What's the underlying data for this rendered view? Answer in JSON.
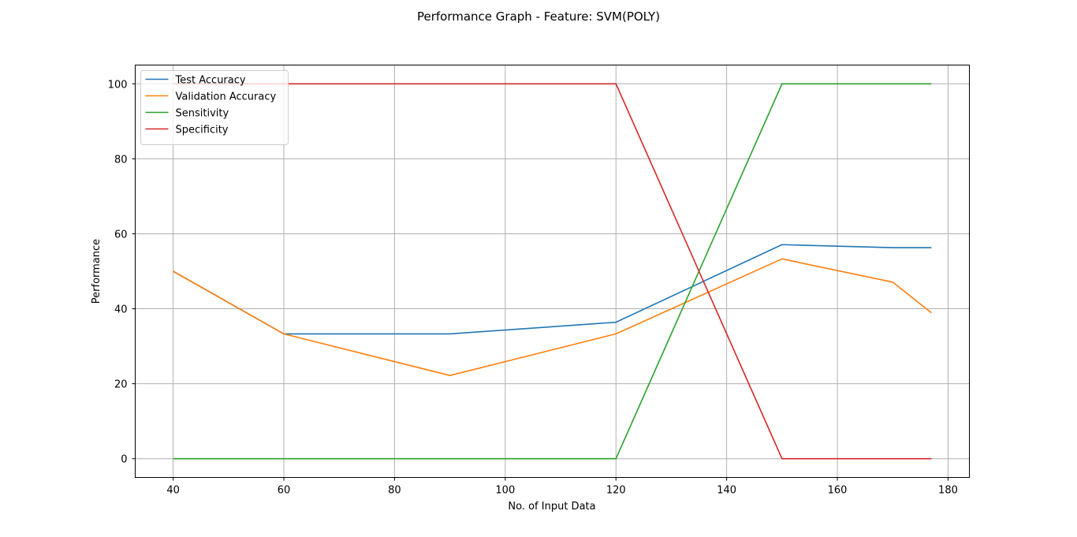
{
  "chart_data": {
    "type": "line",
    "title": "Performance Graph - Feature: SVM(POLY)",
    "xlabel": "No. of Input Data",
    "ylabel": "Performance",
    "xlim": [
      33.15,
      183.85
    ],
    "ylim": [
      -5,
      105
    ],
    "xticks": [
      40,
      60,
      80,
      100,
      120,
      140,
      160,
      180
    ],
    "yticks": [
      0,
      20,
      40,
      60,
      80,
      100
    ],
    "grid": true,
    "legend_position": "upper-left",
    "series": [
      {
        "name": "Test Accuracy",
        "color": "#1f77b4",
        "x": [
          40,
          60,
          90,
          120,
          150,
          170,
          177
        ],
        "y": [
          50,
          33.3,
          33.3,
          36.4,
          57.1,
          56.3,
          56.3
        ]
      },
      {
        "name": "Validation Accuracy",
        "color": "#ff7f0e",
        "x": [
          40,
          60,
          90,
          120,
          150,
          170,
          177
        ],
        "y": [
          50,
          33.3,
          22.2,
          33.3,
          53.3,
          47.1,
          38.9
        ]
      },
      {
        "name": "Sensitivity",
        "color": "#2ca02c",
        "x": [
          40,
          60,
          90,
          120,
          150,
          170,
          177
        ],
        "y": [
          0,
          0,
          0,
          0,
          100,
          100,
          100
        ]
      },
      {
        "name": "Specificity",
        "color": "#d62728",
        "x": [
          40,
          60,
          90,
          120,
          150,
          170,
          177
        ],
        "y": [
          100,
          100,
          100,
          100,
          0,
          0,
          0
        ]
      }
    ]
  }
}
